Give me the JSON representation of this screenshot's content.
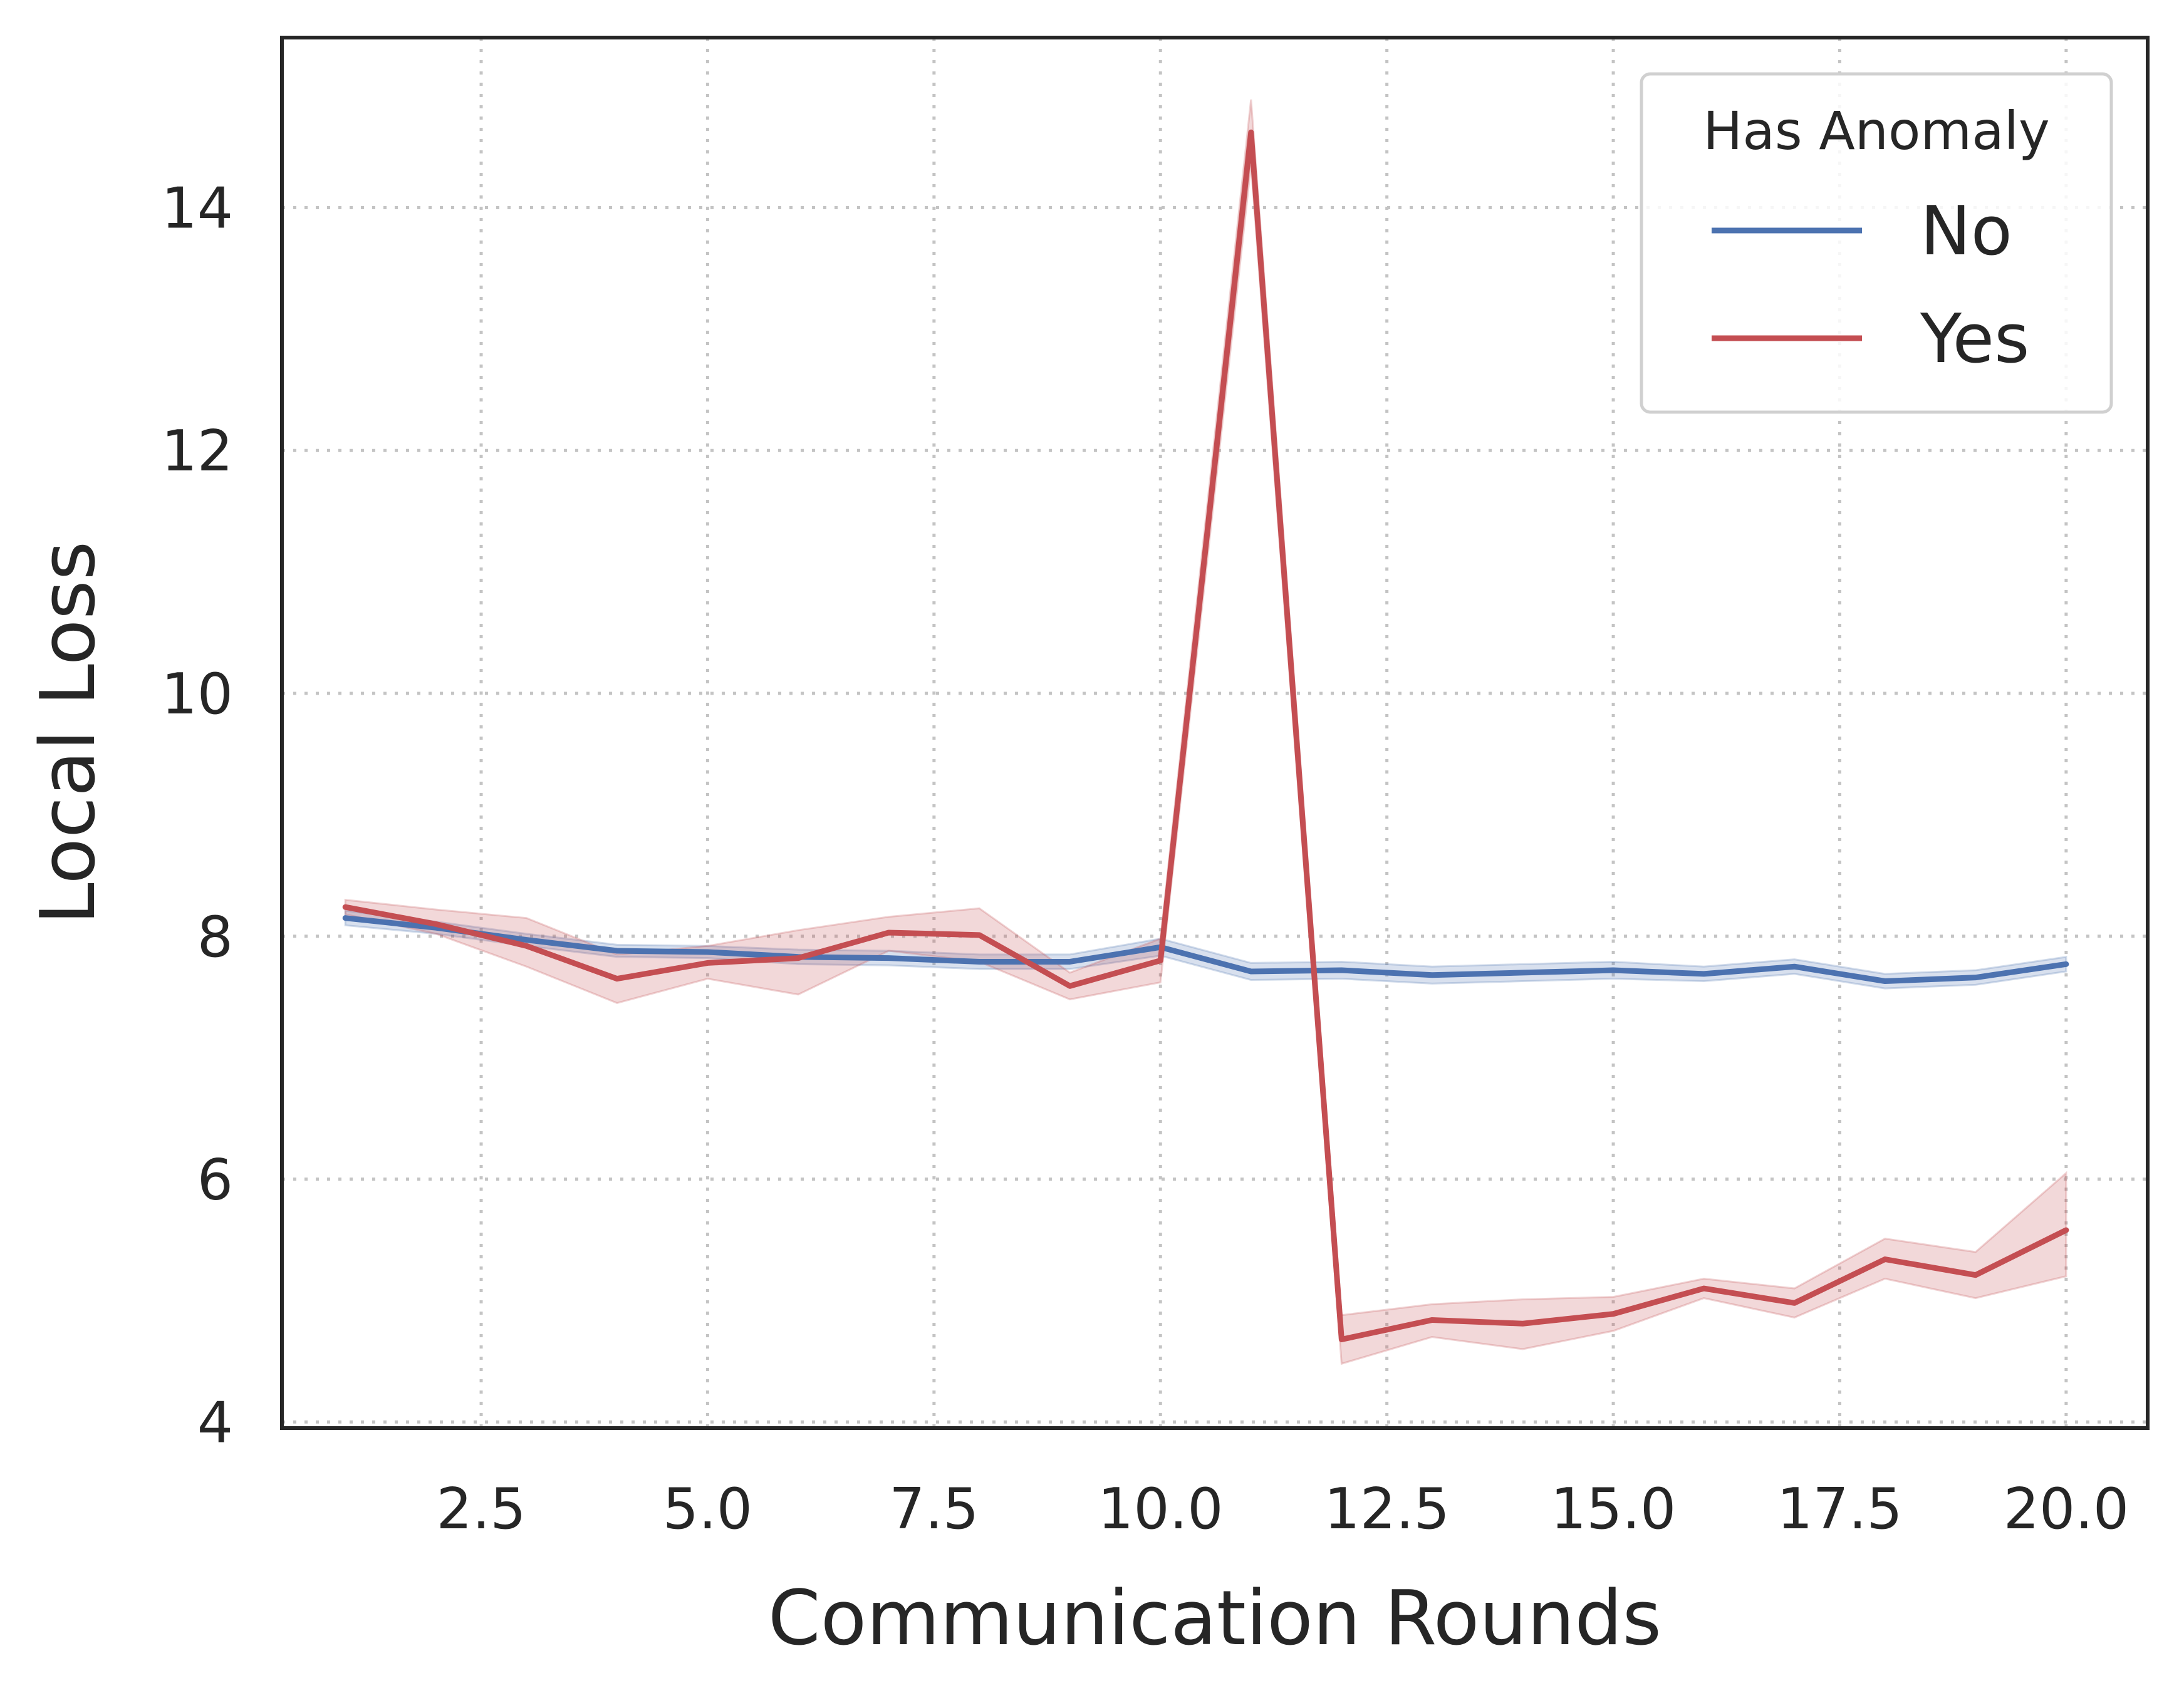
{
  "chart_data": {
    "type": "line",
    "xlabel": "Communication Rounds",
    "ylabel": "Local Loss",
    "xlim": [
      0.3,
      20.9
    ],
    "ylim": [
      3.95,
      15.4
    ],
    "xticks": [
      2.5,
      5.0,
      7.5,
      10.0,
      12.5,
      15.0,
      17.5,
      20.0
    ],
    "xtick_labels": [
      "2.5",
      "5.0",
      "7.5",
      "10.0",
      "12.5",
      "15.0",
      "17.5",
      "20.0"
    ],
    "yticks": [
      4,
      6,
      8,
      10,
      12,
      14
    ],
    "ytick_labels": [
      "4",
      "6",
      "8",
      "10",
      "12",
      "14"
    ],
    "grid": true,
    "legend": {
      "title": "Has Anomaly",
      "placement": "top-right"
    },
    "x": [
      1,
      2,
      3,
      4,
      5,
      6,
      7,
      8,
      9,
      10,
      11,
      12,
      13,
      14,
      15,
      16,
      17,
      18,
      19,
      20
    ],
    "series": [
      {
        "name": "No",
        "color": "#4c72b0",
        "values": [
          8.15,
          8.07,
          7.97,
          7.88,
          7.87,
          7.83,
          7.82,
          7.79,
          7.79,
          7.91,
          7.71,
          7.72,
          7.68,
          7.7,
          7.72,
          7.69,
          7.75,
          7.63,
          7.66,
          7.77
        ],
        "lower": [
          8.09,
          8.02,
          7.92,
          7.83,
          7.82,
          7.77,
          7.76,
          7.73,
          7.73,
          7.84,
          7.64,
          7.65,
          7.61,
          7.63,
          7.65,
          7.63,
          7.69,
          7.57,
          7.6,
          7.71
        ],
        "upper": [
          8.21,
          8.12,
          8.02,
          7.93,
          7.92,
          7.89,
          7.88,
          7.85,
          7.85,
          7.98,
          7.78,
          7.79,
          7.75,
          7.77,
          7.79,
          7.75,
          7.81,
          7.69,
          7.72,
          7.83
        ]
      },
      {
        "name": "Yes",
        "color": "#c44e52",
        "values": [
          8.24,
          8.1,
          7.92,
          7.65,
          7.78,
          7.82,
          8.03,
          8.01,
          7.59,
          7.8,
          14.62,
          4.68,
          4.84,
          4.81,
          4.89,
          5.1,
          4.98,
          5.34,
          5.21,
          5.58
        ],
        "lower": [
          8.18,
          8.02,
          7.75,
          7.45,
          7.65,
          7.52,
          7.88,
          7.79,
          7.48,
          7.62,
          14.35,
          4.48,
          4.7,
          4.6,
          4.75,
          5.02,
          4.86,
          5.18,
          5.02,
          5.2
        ],
        "upper": [
          8.3,
          8.22,
          8.15,
          7.85,
          7.92,
          8.05,
          8.16,
          8.23,
          7.7,
          7.98,
          14.89,
          4.88,
          4.97,
          5.01,
          5.03,
          5.18,
          5.1,
          5.51,
          5.4,
          6.05
        ]
      }
    ]
  }
}
